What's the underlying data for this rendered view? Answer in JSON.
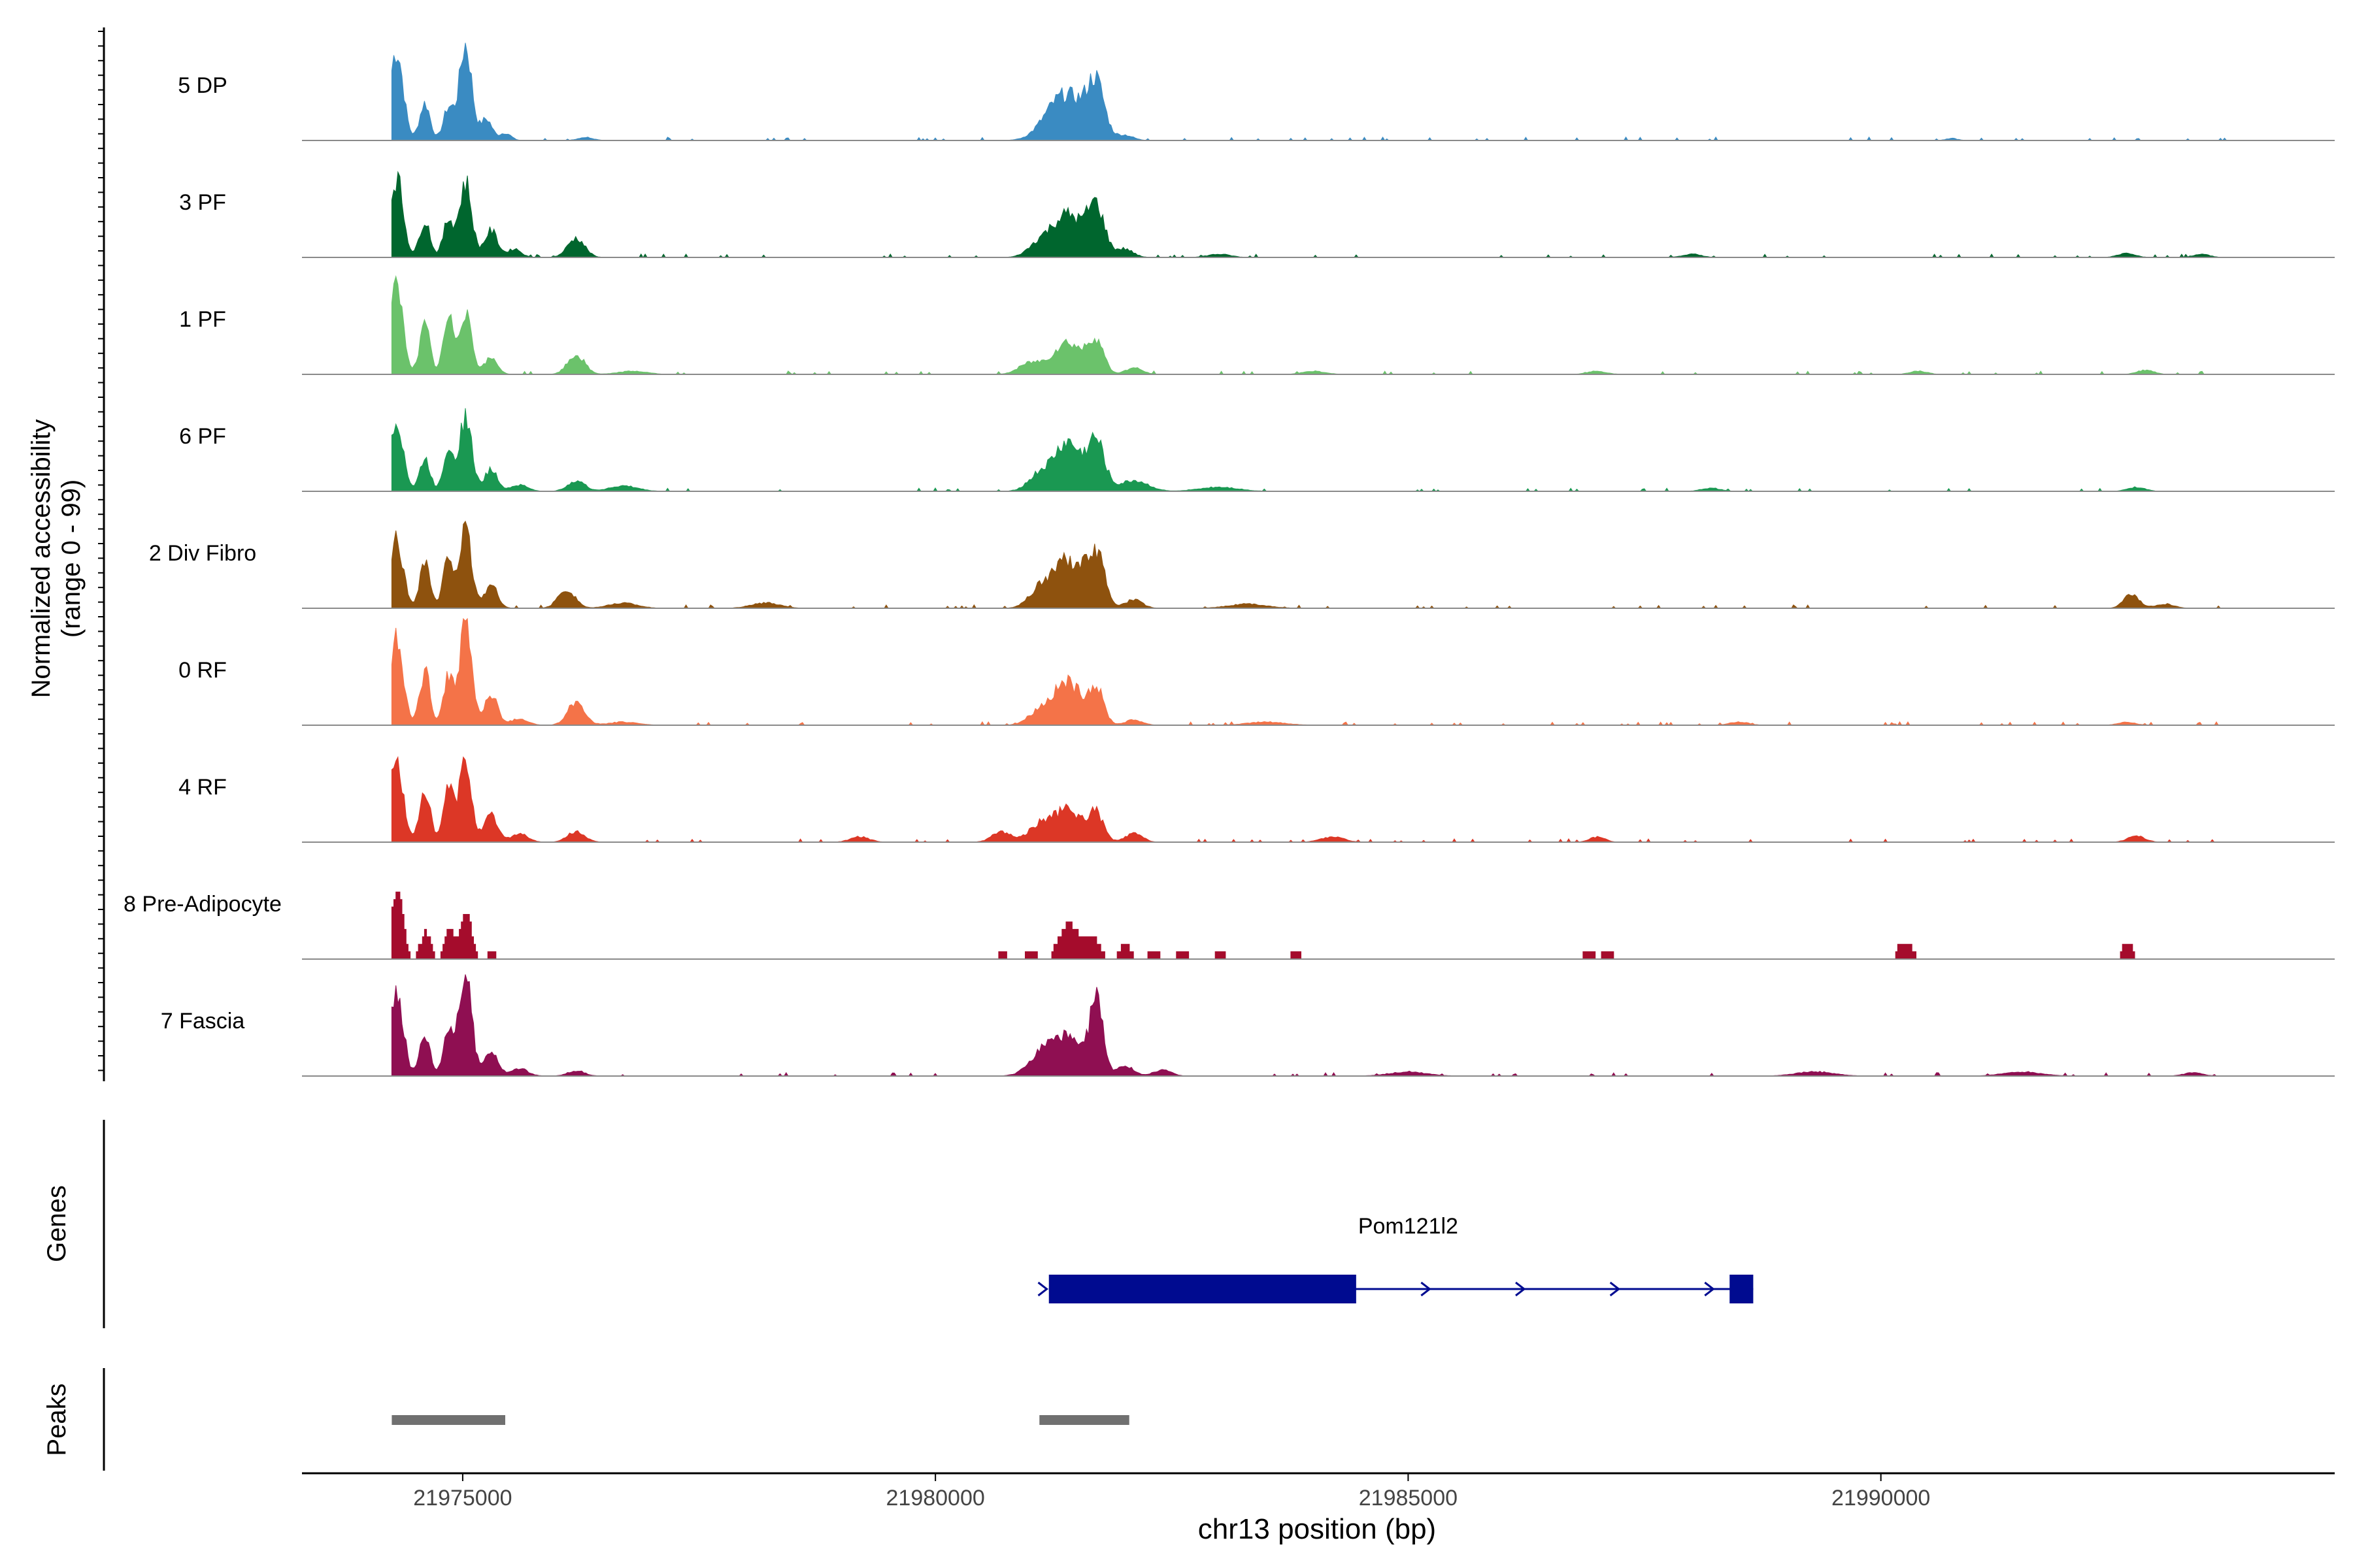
{
  "chart_data": {
    "type": "area",
    "title": "",
    "xlabel": "chr13 position (bp)",
    "ylabel_line1": "Normalized accessibility",
    "ylabel_line2": "(range 0 - 99)",
    "xlim": [
      21973300,
      21994800
    ],
    "ylim": [
      0,
      99
    ],
    "x_ticks": [
      {
        "value": 21975000,
        "label": "21975000"
      },
      {
        "value": 21980000,
        "label": "21980000"
      },
      {
        "value": 21985000,
        "label": "21985000"
      },
      {
        "value": 21990000,
        "label": "21990000"
      }
    ],
    "track_range": [
      21974250,
      21993700
    ],
    "series": [
      {
        "name": "5 DP",
        "color": "#3a8bc2",
        "style": "smooth",
        "peaks": [
          [
            21974300,
            0.85,
            70
          ],
          [
            21974600,
            0.35,
            55
          ],
          [
            21974850,
            0.3,
            55
          ],
          [
            21975030,
            0.9,
            65
          ],
          [
            21975250,
            0.2,
            60
          ],
          [
            21975450,
            0.07,
            60
          ],
          [
            21976300,
            0.03,
            80
          ],
          [
            21981300,
            0.33,
            170
          ],
          [
            21981700,
            0.5,
            90
          ],
          [
            21981500,
            0.2,
            140
          ],
          [
            21982000,
            0.05,
            90
          ],
          [
            21990750,
            0.02,
            60
          ]
        ]
      },
      {
        "name": "3 PF",
        "color": "#00662e",
        "style": "smooth",
        "peaks": [
          [
            21974300,
            0.75,
            70
          ],
          [
            21974600,
            0.35,
            55
          ],
          [
            21974850,
            0.35,
            55
          ],
          [
            21975030,
            0.7,
            65
          ],
          [
            21975300,
            0.25,
            70
          ],
          [
            21975550,
            0.08,
            70
          ],
          [
            21976200,
            0.18,
            90
          ],
          [
            21981400,
            0.4,
            160
          ],
          [
            21981700,
            0.45,
            90
          ],
          [
            21981100,
            0.12,
            120
          ],
          [
            21982000,
            0.08,
            90
          ],
          [
            21983000,
            0.03,
            120
          ],
          [
            21988000,
            0.03,
            100
          ],
          [
            21992600,
            0.04,
            90
          ],
          [
            21993400,
            0.03,
            80
          ]
        ]
      },
      {
        "name": "1 PF",
        "color": "#6bc26b",
        "style": "smooth",
        "peaks": [
          [
            21974300,
            0.8,
            70
          ],
          [
            21974600,
            0.45,
            55
          ],
          [
            21974850,
            0.5,
            55
          ],
          [
            21975030,
            0.6,
            65
          ],
          [
            21975300,
            0.15,
            70
          ],
          [
            21976200,
            0.18,
            90
          ],
          [
            21976800,
            0.03,
            150
          ],
          [
            21981400,
            0.3,
            160
          ],
          [
            21981700,
            0.3,
            80
          ],
          [
            21981000,
            0.1,
            120
          ],
          [
            21982100,
            0.06,
            90
          ],
          [
            21984000,
            0.03,
            120
          ],
          [
            21987000,
            0.03,
            100
          ],
          [
            21990400,
            0.03,
            90
          ],
          [
            21992800,
            0.04,
            90
          ]
        ]
      },
      {
        "name": "6 PF",
        "color": "#1a9852",
        "style": "smooth",
        "peaks": [
          [
            21974300,
            0.68,
            70
          ],
          [
            21974600,
            0.3,
            55
          ],
          [
            21974850,
            0.4,
            55
          ],
          [
            21975030,
            0.7,
            65
          ],
          [
            21975300,
            0.2,
            70
          ],
          [
            21975600,
            0.06,
            90
          ],
          [
            21976200,
            0.1,
            90
          ],
          [
            21976700,
            0.05,
            150
          ],
          [
            21981400,
            0.45,
            140
          ],
          [
            21981700,
            0.45,
            90
          ],
          [
            21981100,
            0.15,
            120
          ],
          [
            21982100,
            0.1,
            150
          ],
          [
            21983000,
            0.04,
            200
          ],
          [
            21988200,
            0.03,
            100
          ],
          [
            21992700,
            0.04,
            90
          ]
        ]
      },
      {
        "name": "2 Div Fibro",
        "color": "#8e520e",
        "style": "smooth",
        "peaks": [
          [
            21974300,
            0.65,
            70
          ],
          [
            21974600,
            0.45,
            55
          ],
          [
            21974850,
            0.48,
            55
          ],
          [
            21975030,
            0.72,
            65
          ],
          [
            21975300,
            0.22,
            70
          ],
          [
            21976100,
            0.18,
            90
          ],
          [
            21976700,
            0.05,
            150
          ],
          [
            21978200,
            0.05,
            150
          ],
          [
            21981400,
            0.45,
            160
          ],
          [
            21981700,
            0.48,
            90
          ],
          [
            21981100,
            0.15,
            120
          ],
          [
            21982100,
            0.08,
            90
          ],
          [
            21983300,
            0.04,
            200
          ],
          [
            21992650,
            0.13,
            80
          ],
          [
            21993000,
            0.04,
            100
          ]
        ]
      },
      {
        "name": "0 RF",
        "color": "#f47348",
        "style": "smooth",
        "peaks": [
          [
            21974300,
            0.78,
            70
          ],
          [
            21974600,
            0.5,
            55
          ],
          [
            21974850,
            0.45,
            55
          ],
          [
            21975030,
            0.95,
            65
          ],
          [
            21975300,
            0.28,
            70
          ],
          [
            21975600,
            0.06,
            90
          ],
          [
            21976200,
            0.22,
            90
          ],
          [
            21976700,
            0.03,
            150
          ],
          [
            21981400,
            0.4,
            150
          ],
          [
            21981700,
            0.32,
            80
          ],
          [
            21981100,
            0.12,
            120
          ],
          [
            21982100,
            0.05,
            90
          ],
          [
            21983500,
            0.03,
            200
          ],
          [
            21988500,
            0.03,
            100
          ],
          [
            21992600,
            0.03,
            90
          ]
        ]
      },
      {
        "name": "4 RF",
        "color": "#dc3726",
        "style": "smooth",
        "peaks": [
          [
            21974300,
            0.75,
            70
          ],
          [
            21974600,
            0.5,
            55
          ],
          [
            21974850,
            0.5,
            55
          ],
          [
            21975030,
            0.75,
            65
          ],
          [
            21975300,
            0.25,
            70
          ],
          [
            21975600,
            0.08,
            90
          ],
          [
            21976200,
            0.1,
            90
          ],
          [
            21979200,
            0.05,
            100
          ],
          [
            21980700,
            0.1,
            100
          ],
          [
            21981400,
            0.3,
            150
          ],
          [
            21981700,
            0.25,
            80
          ],
          [
            21981100,
            0.15,
            120
          ],
          [
            21982100,
            0.08,
            90
          ],
          [
            21984200,
            0.05,
            120
          ],
          [
            21987000,
            0.05,
            80
          ],
          [
            21992700,
            0.06,
            90
          ]
        ]
      },
      {
        "name": "8 Pre-Adipocyte",
        "color": "#a50c2c",
        "style": "blocky",
        "peaks": [
          [
            21974300,
            0.65,
            60
          ],
          [
            21974600,
            0.25,
            55
          ],
          [
            21974850,
            0.3,
            55
          ],
          [
            21975030,
            0.45,
            55
          ],
          [
            21975300,
            0.1,
            50
          ],
          [
            21980700,
            0.08,
            60
          ],
          [
            21981000,
            0.1,
            60
          ],
          [
            21981400,
            0.33,
            100
          ],
          [
            21981650,
            0.2,
            80
          ],
          [
            21982000,
            0.12,
            80
          ],
          [
            21982300,
            0.1,
            60
          ],
          [
            21982600,
            0.1,
            60
          ],
          [
            21983000,
            0.1,
            60
          ],
          [
            21983800,
            0.1,
            60
          ],
          [
            21986900,
            0.1,
            60
          ],
          [
            21987100,
            0.1,
            60
          ],
          [
            21990200,
            0.1,
            60
          ],
          [
            21990300,
            0.1,
            60
          ],
          [
            21992600,
            0.17,
            50
          ]
        ]
      },
      {
        "name": "7 Fascia",
        "color": "#8f0f52",
        "style": "smooth",
        "peaks": [
          [
            21974300,
            0.82,
            70
          ],
          [
            21974600,
            0.4,
            55
          ],
          [
            21974850,
            0.45,
            55
          ],
          [
            21975030,
            0.98,
            65
          ],
          [
            21975300,
            0.25,
            70
          ],
          [
            21975600,
            0.07,
            90
          ],
          [
            21976200,
            0.05,
            90
          ],
          [
            21981200,
            0.3,
            160
          ],
          [
            21981700,
            0.72,
            70
          ],
          [
            21981450,
            0.25,
            120
          ],
          [
            21982000,
            0.1,
            90
          ],
          [
            21982400,
            0.06,
            90
          ],
          [
            21985000,
            0.04,
            200
          ],
          [
            21989300,
            0.04,
            200
          ],
          [
            21991500,
            0.04,
            200
          ],
          [
            21993300,
            0.03,
            100
          ]
        ]
      }
    ],
    "genes_label": "Genes",
    "gene": {
      "name": "Pom121l2",
      "start": 21981200,
      "end": 21988650,
      "strand": "+",
      "color": "#000b90",
      "exons": [
        [
          21981200,
          21984450
        ],
        [
          21988400,
          21988650
        ]
      ],
      "arrows": [
        21981150,
        21985200,
        21986200,
        21987200,
        21988200
      ]
    },
    "peaks_label": "Peaks",
    "peak_regions": [
      {
        "start": 21974250,
        "end": 21975450
      },
      {
        "start": 21981100,
        "end": 21982050
      }
    ],
    "peak_color": "#707070"
  }
}
